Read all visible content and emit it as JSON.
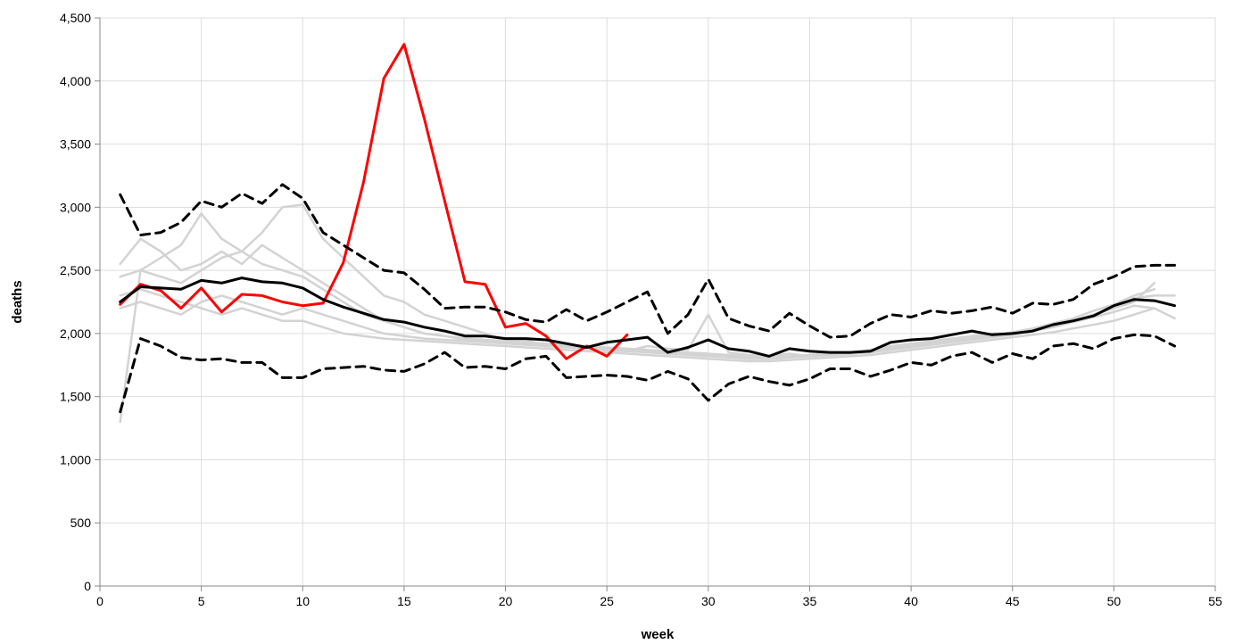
{
  "chart_data": {
    "type": "line",
    "xlabel": "week",
    "ylabel": "deaths",
    "xlim": [
      0,
      55
    ],
    "ylim": [
      0,
      4500
    ],
    "xticks": [
      0,
      5,
      10,
      15,
      20,
      25,
      30,
      35,
      40,
      45,
      50,
      55
    ],
    "yticks": [
      0,
      500,
      1000,
      1500,
      2000,
      2500,
      3000,
      3500,
      4000,
      4500
    ],
    "xtick_labels": [
      "0",
      "5",
      "10",
      "15",
      "20",
      "25",
      "30",
      "35",
      "40",
      "45",
      "50",
      "55"
    ],
    "ytick_labels": [
      "0",
      "500",
      "1,000",
      "1,500",
      "2,000",
      "2,500",
      "3,000",
      "3,500",
      "4,000",
      "4,500"
    ],
    "grid": true,
    "colors": {
      "previous_years": "#d3d3d3",
      "current_year": "#ff0000",
      "mean": "#000000",
      "bounds": "#000000"
    },
    "series": [
      {
        "role": "previous_years",
        "color": "#d3d3d3",
        "x": [
          1,
          2,
          3,
          4,
          5,
          6,
          7,
          8,
          9,
          10,
          11,
          12,
          13,
          14,
          15,
          16,
          17,
          18,
          19,
          20,
          21,
          22,
          23,
          24,
          25,
          26,
          27,
          28,
          29,
          30,
          31,
          32,
          33,
          34,
          35,
          36,
          37,
          38,
          39,
          40,
          41,
          42,
          43,
          44,
          45,
          46,
          47,
          48,
          49,
          50,
          51,
          52,
          53
        ],
        "values": [
          1300,
          2500,
          2600,
          2700,
          2950,
          2750,
          2650,
          2800,
          3000,
          3020,
          2750,
          2600,
          2450,
          2300,
          2250,
          2150,
          2100,
          2050,
          2000,
          1950,
          1950,
          1900,
          1900,
          1880,
          1870,
          1860,
          1900,
          1880,
          1870,
          2150,
          1850,
          1830,
          1820,
          1840,
          1820,
          1830,
          1850,
          1860,
          1900,
          1920,
          1940,
          1960,
          1980,
          2000,
          2000,
          2020,
          2060,
          2100,
          2150,
          2200,
          2280,
          2300,
          2300
        ]
      },
      {
        "role": "previous_years",
        "color": "#d3d3d3",
        "x": [
          1,
          2,
          3,
          4,
          5,
          6,
          7,
          8,
          9,
          10,
          11,
          12,
          13,
          14,
          15,
          16,
          17,
          18,
          19,
          20,
          21,
          22,
          23,
          24,
          25,
          26,
          27,
          28,
          29,
          30,
          31,
          32,
          33,
          34,
          35,
          36,
          37,
          38,
          39,
          40,
          41,
          42,
          43,
          44,
          45,
          46,
          47,
          48,
          49,
          50,
          51,
          52
        ],
        "values": [
          2550,
          2750,
          2650,
          2500,
          2550,
          2650,
          2550,
          2700,
          2600,
          2500,
          2400,
          2300,
          2200,
          2100,
          2050,
          2000,
          1980,
          1950,
          1940,
          1930,
          1920,
          1910,
          1900,
          1890,
          1880,
          1870,
          1860,
          1850,
          1840,
          1830,
          1820,
          1810,
          1800,
          1810,
          1820,
          1830,
          1840,
          1860,
          1880,
          1900,
          1920,
          1940,
          1960,
          1980,
          2000,
          2030,
          2060,
          2100,
          2150,
          2200,
          2250,
          2400
        ]
      },
      {
        "role": "previous_years",
        "color": "#d3d3d3",
        "x": [
          1,
          2,
          3,
          4,
          5,
          6,
          7,
          8,
          9,
          10,
          11,
          12,
          13,
          14,
          15,
          16,
          17,
          18,
          19,
          20,
          21,
          22,
          23,
          24,
          25,
          26,
          27,
          28,
          29,
          30,
          31,
          32,
          33,
          34,
          35,
          36,
          37,
          38,
          39,
          40,
          41,
          42,
          43,
          44,
          45,
          46,
          47,
          48,
          49,
          50,
          51,
          52,
          53
        ],
        "values": [
          2300,
          2350,
          2300,
          2250,
          2200,
          2150,
          2200,
          2150,
          2100,
          2100,
          2050,
          2000,
          1980,
          1960,
          1950,
          1940,
          1930,
          1920,
          1910,
          1900,
          1890,
          1880,
          1870,
          1860,
          1850,
          1840,
          1830,
          1820,
          1810,
          1800,
          1790,
          1780,
          1780,
          1790,
          1800,
          1810,
          1820,
          1830,
          1850,
          1870,
          1890,
          1910,
          1930,
          1950,
          1970,
          1990,
          2010,
          2040,
          2070,
          2100,
          2150,
          2200,
          2120
        ]
      },
      {
        "role": "previous_years",
        "color": "#d3d3d3",
        "x": [
          1,
          2,
          3,
          4,
          5,
          6,
          7,
          8,
          9,
          10,
          11,
          12,
          13,
          14,
          15,
          16,
          17,
          18,
          19,
          20,
          21,
          22,
          23,
          24,
          25,
          26,
          27,
          28,
          29,
          30,
          31,
          32,
          33,
          34,
          35,
          36,
          37,
          38,
          39,
          40,
          41,
          42,
          43,
          44,
          45,
          46,
          47,
          48,
          49,
          50,
          51,
          52
        ],
        "values": [
          2450,
          2500,
          2450,
          2400,
          2500,
          2600,
          2650,
          2550,
          2500,
          2450,
          2350,
          2250,
          2150,
          2100,
          2050,
          2000,
          1980,
          1960,
          1950,
          1940,
          1930,
          1920,
          1910,
          1900,
          1890,
          1880,
          1870,
          1860,
          1850,
          1840,
          1830,
          1820,
          1810,
          1820,
          1830,
          1840,
          1850,
          1870,
          1890,
          1910,
          1930,
          1950,
          1970,
          1990,
          2010,
          2040,
          2080,
          2120,
          2180,
          2230,
          2300,
          2350
        ]
      },
      {
        "role": "previous_years",
        "color": "#d3d3d3",
        "x": [
          1,
          2,
          3,
          4,
          5,
          6,
          7,
          8,
          9,
          10,
          11,
          12,
          13,
          14,
          15,
          16,
          17,
          18,
          19,
          20,
          21,
          22,
          23,
          24,
          25,
          26,
          27,
          28,
          29,
          30,
          31,
          32,
          33,
          34,
          35,
          36,
          37,
          38,
          39,
          40,
          41,
          42,
          43,
          44,
          45,
          46,
          47,
          48,
          49,
          50,
          51,
          52
        ],
        "values": [
          2200,
          2250,
          2200,
          2150,
          2250,
          2300,
          2250,
          2200,
          2150,
          2200,
          2150,
          2100,
          2050,
          2000,
          1980,
          1960,
          1950,
          1940,
          1930,
          1920,
          1910,
          1900,
          1890,
          1880,
          1870,
          1860,
          1850,
          1840,
          1830,
          1820,
          1810,
          1800,
          1800,
          1810,
          1820,
          1830,
          1840,
          1850,
          1870,
          1890,
          1910,
          1930,
          1950,
          1970,
          1990,
          2020,
          2050,
          2090,
          2130,
          2170,
          2220,
          2200
        ]
      },
      {
        "role": "current_year",
        "color": "#ff0000",
        "x": [
          1,
          2,
          3,
          4,
          5,
          6,
          7,
          8,
          9,
          10,
          11,
          12,
          13,
          14,
          15,
          16,
          17,
          18,
          19,
          20,
          21,
          22,
          23,
          24,
          25,
          26
        ],
        "values": [
          2230,
          2390,
          2340,
          2200,
          2360,
          2170,
          2310,
          2300,
          2250,
          2220,
          2240,
          2560,
          3200,
          4020,
          4290,
          3700,
          3050,
          2410,
          2390,
          2050,
          2080,
          1980,
          1800,
          1900,
          1820,
          1990
        ]
      },
      {
        "role": "mean",
        "color": "#000000",
        "x": [
          1,
          2,
          3,
          4,
          5,
          6,
          7,
          8,
          9,
          10,
          11,
          12,
          13,
          14,
          15,
          16,
          17,
          18,
          19,
          20,
          21,
          22,
          23,
          24,
          25,
          26,
          27,
          28,
          29,
          30,
          31,
          32,
          33,
          34,
          35,
          36,
          37,
          38,
          39,
          40,
          41,
          42,
          43,
          44,
          45,
          46,
          47,
          48,
          49,
          50,
          51,
          52,
          53
        ],
        "values": [
          2250,
          2370,
          2360,
          2350,
          2420,
          2400,
          2440,
          2410,
          2400,
          2360,
          2270,
          2210,
          2160,
          2110,
          2090,
          2050,
          2020,
          1980,
          1980,
          1960,
          1960,
          1950,
          1920,
          1890,
          1930,
          1950,
          1970,
          1850,
          1890,
          1950,
          1880,
          1860,
          1820,
          1880,
          1860,
          1850,
          1850,
          1860,
          1930,
          1950,
          1960,
          1990,
          2020,
          1990,
          2000,
          2020,
          2070,
          2100,
          2140,
          2220,
          2270,
          2260,
          2220
        ]
      },
      {
        "role": "upper_bound",
        "color": "#000000",
        "dashed": true,
        "x": [
          1,
          2,
          3,
          4,
          5,
          6,
          7,
          8,
          9,
          10,
          11,
          12,
          13,
          14,
          15,
          16,
          17,
          18,
          19,
          20,
          21,
          22,
          23,
          24,
          25,
          26,
          27,
          28,
          29,
          30,
          31,
          32,
          33,
          34,
          35,
          36,
          37,
          38,
          39,
          40,
          41,
          42,
          43,
          44,
          45,
          46,
          47,
          48,
          49,
          50,
          51,
          52,
          53
        ],
        "values": [
          3100,
          2780,
          2800,
          2880,
          3050,
          3000,
          3110,
          3030,
          3180,
          3070,
          2800,
          2700,
          2600,
          2500,
          2480,
          2350,
          2200,
          2210,
          2210,
          2170,
          2110,
          2090,
          2190,
          2100,
          2170,
          2250,
          2330,
          2000,
          2150,
          2430,
          2120,
          2060,
          2020,
          2160,
          2060,
          1970,
          1980,
          2080,
          2150,
          2130,
          2180,
          2160,
          2180,
          2210,
          2160,
          2240,
          2230,
          2270,
          2390,
          2450,
          2530,
          2540,
          2540
        ]
      },
      {
        "role": "lower_bound",
        "color": "#000000",
        "dashed": true,
        "x": [
          1,
          2,
          3,
          4,
          5,
          6,
          7,
          8,
          9,
          10,
          11,
          12,
          13,
          14,
          15,
          16,
          17,
          18,
          19,
          20,
          21,
          22,
          23,
          24,
          25,
          26,
          27,
          28,
          29,
          30,
          31,
          32,
          33,
          34,
          35,
          36,
          37,
          38,
          39,
          40,
          41,
          42,
          43,
          44,
          45,
          46,
          47,
          48,
          49,
          50,
          51,
          52,
          53
        ],
        "values": [
          1380,
          1960,
          1900,
          1810,
          1790,
          1800,
          1770,
          1770,
          1650,
          1650,
          1720,
          1730,
          1740,
          1710,
          1700,
          1760,
          1850,
          1730,
          1740,
          1720,
          1800,
          1820,
          1650,
          1660,
          1670,
          1660,
          1630,
          1700,
          1640,
          1470,
          1600,
          1660,
          1620,
          1590,
          1640,
          1720,
          1720,
          1660,
          1710,
          1770,
          1750,
          1820,
          1850,
          1770,
          1840,
          1800,
          1900,
          1920,
          1880,
          1960,
          1990,
          1980,
          1900
        ]
      }
    ]
  }
}
